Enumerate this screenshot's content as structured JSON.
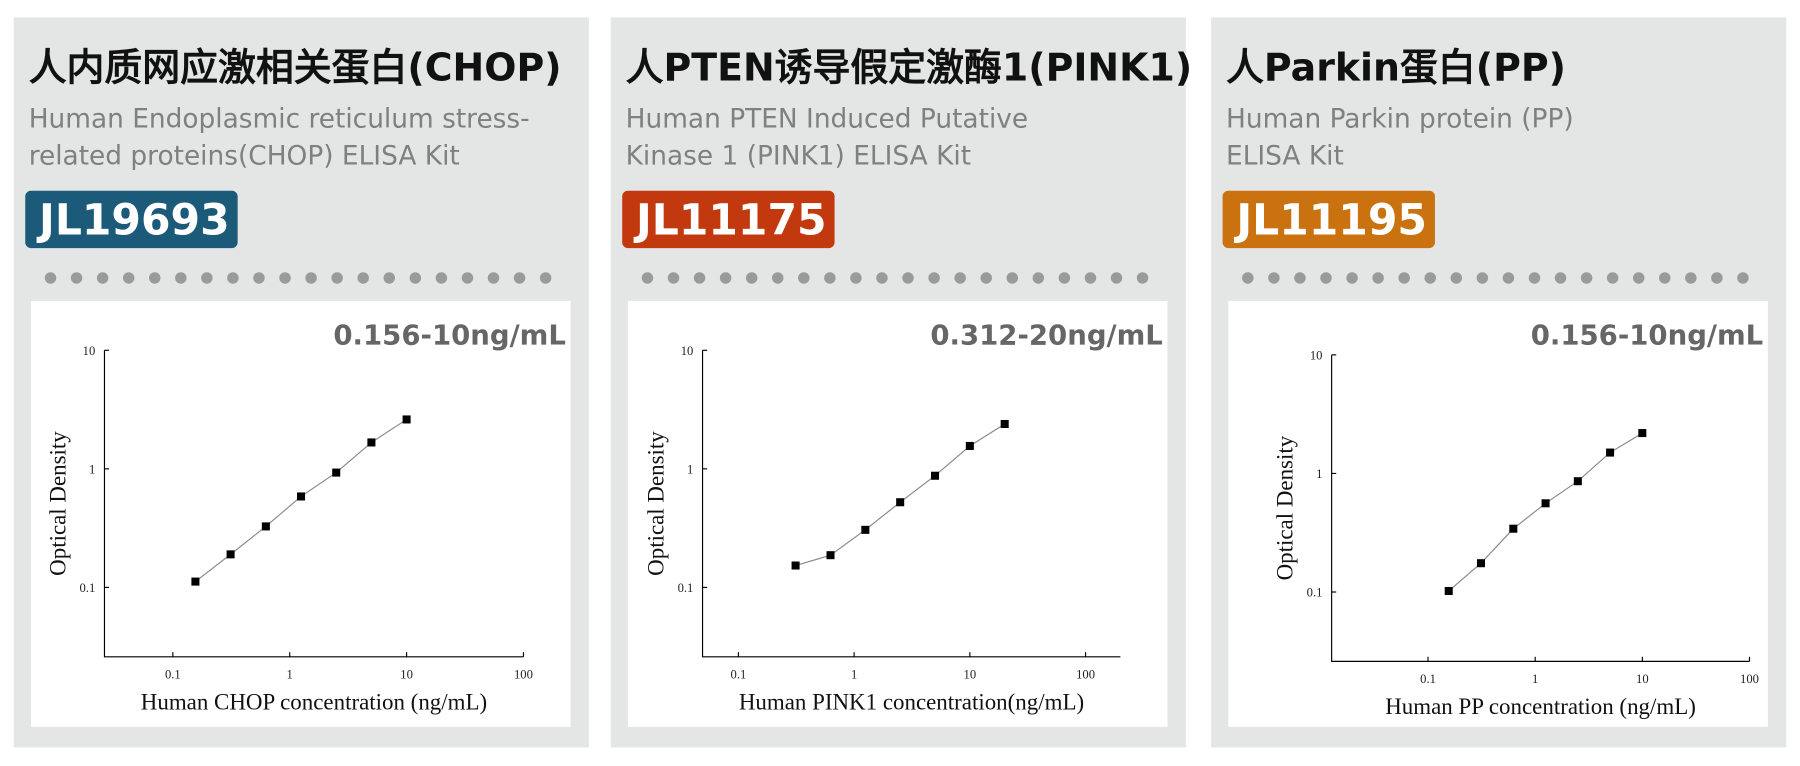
{
  "cards": [
    {
      "title": "人内质网应激相关蛋白(CHOP)",
      "subtitle": [
        "Human Endoplasmic reticulum stress-",
        "related proteins(CHOP) ELISA Kit"
      ],
      "code": "JL19693",
      "code_color": "#1b5a78",
      "range": "0.156-10ng/mL"
    },
    {
      "title": "人PTEN诱导假定激酶1(PINK1)",
      "subtitle": [
        "Human PTEN Induced Putative",
        "Kinase 1 (PINK1) ELISA Kit"
      ],
      "code": "JL11175",
      "code_color": "#c2380f",
      "range": "0.312-20ng/mL"
    },
    {
      "title": "人Parkin蛋白(PP)",
      "subtitle": [
        "Human Parkin protein (PP)",
        "ELISA Kit"
      ],
      "code": "JL11195",
      "code_color": "#c9720f",
      "range": "0.156-10ng/mL"
    }
  ],
  "chart_data": [
    {
      "type": "line",
      "x_label": "Human CHOP concentration (ng/mL)",
      "y_label": "Optical Density",
      "x": [
        0.156,
        0.312,
        0.625,
        1.25,
        2.5,
        5,
        10
      ],
      "values": [
        0.112,
        0.19,
        0.327,
        0.585,
        0.93,
        1.67,
        2.61
      ],
      "color": "#000000",
      "xlog": true,
      "ylog": true,
      "xlim": [
        0.026,
        100
      ],
      "ylim": [
        0.026,
        10
      ],
      "xticks": [
        0.1,
        1,
        10,
        100
      ],
      "yticks": [
        0.1,
        1,
        10
      ]
    },
    {
      "type": "line",
      "x_label": "Human PINK1 concentration(ng/mL)",
      "y_label": "Optical Density",
      "x": [
        0.312,
        0.625,
        1.25,
        2.5,
        5,
        10,
        20
      ],
      "values": [
        0.153,
        0.187,
        0.306,
        0.523,
        0.875,
        1.56,
        2.39
      ],
      "color": "#000000",
      "xlog": true,
      "ylog": true,
      "xlim": [
        0.049,
        200
      ],
      "ylim": [
        0.026,
        10
      ],
      "xticks": [
        0.1,
        1,
        10,
        100
      ],
      "yticks": [
        0.1,
        1,
        10
      ]
    },
    {
      "type": "line",
      "x_label": "Human PP concentration (ng/mL)",
      "y_label": "Optical Density",
      "x": [
        0.156,
        0.312,
        0.625,
        1.25,
        2.5,
        5,
        10
      ],
      "values": [
        0.102,
        0.175,
        0.342,
        0.56,
        0.86,
        1.5,
        2.19
      ],
      "color": "#000000",
      "xlog": true,
      "ylog": true,
      "xlim": [
        0.0126,
        100
      ],
      "ylim": [
        0.026,
        10
      ],
      "xticks": [
        0.1,
        1,
        10,
        100
      ],
      "yticks": [
        0.1,
        1,
        10
      ]
    }
  ]
}
